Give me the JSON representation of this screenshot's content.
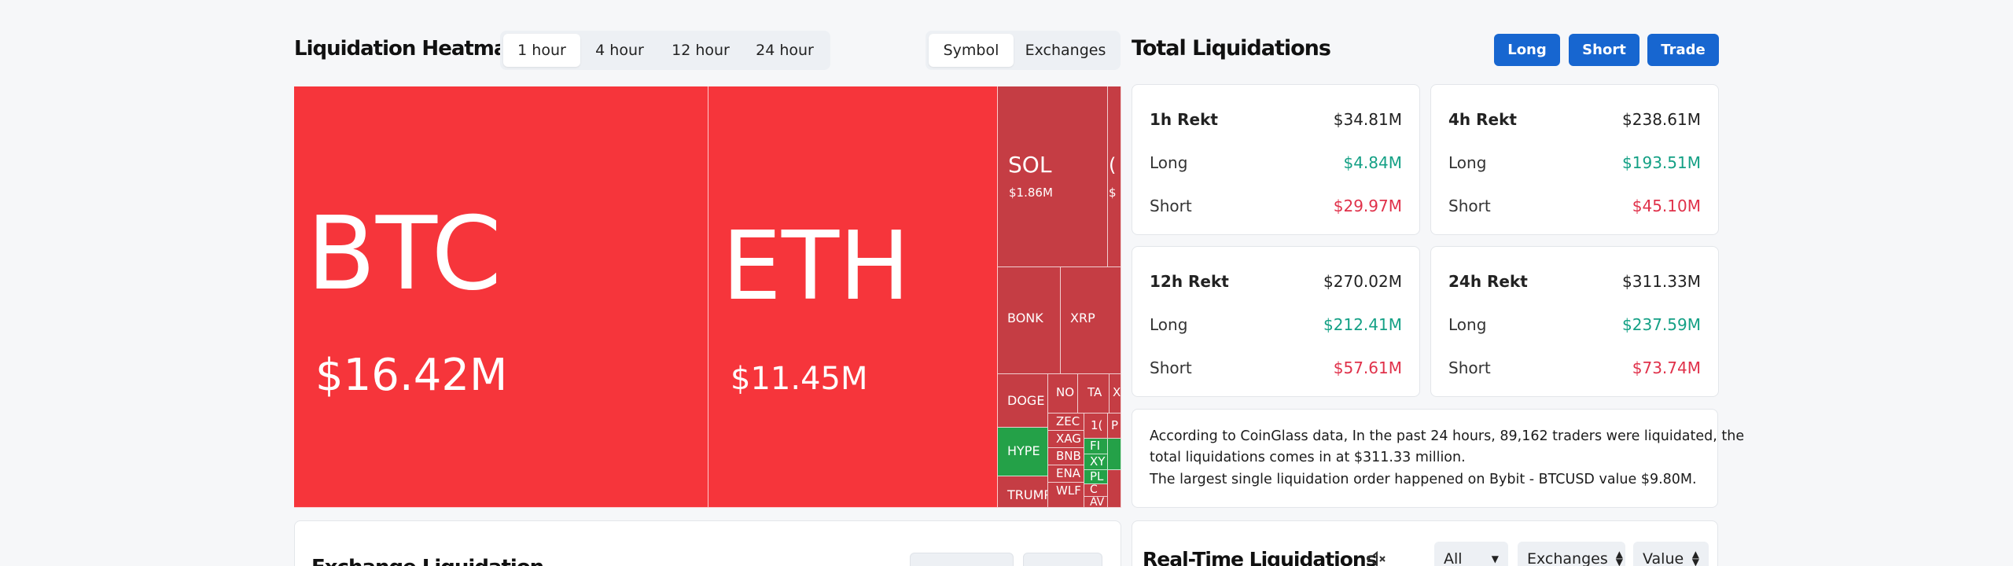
{
  "heatmap": {
    "title": "Liquidation Heatmap",
    "time_tabs": [
      "1 hour",
      "4 hour",
      "12 hour",
      "24 hour"
    ],
    "active_time_tab": "1 hour",
    "view_tabs": [
      "Symbol",
      "Exchanges"
    ],
    "active_view_tab": "Symbol",
    "cells": {
      "btc": {
        "symbol": "BTC",
        "value": "$16.42M"
      },
      "eth": {
        "symbol": "ETH",
        "value": "$11.45M"
      },
      "sol": {
        "symbol": "SOL",
        "value": "$1.86M"
      },
      "bonk": "BONK",
      "xrp": "XRP",
      "doge": "DOGE",
      "hype": "HYPE",
      "trump": "TRUMP",
      "no": "NO",
      "ta": "TA",
      "x": "X",
      "zec": "ZEC",
      "xag": "XAG",
      "bnb": "BNB",
      "ena": "ENA",
      "wlf": "WLF",
      "one": "1(",
      "fi": "FI",
      "xy": "XY",
      "pl": "PL",
      "c": "C",
      "av": "AV",
      "p": "P",
      "g": "(",
      "s": "$"
    },
    "colors": {
      "long_red": "#f6353b",
      "dark_red": "#c53d44",
      "green": "#24a148"
    }
  },
  "total": {
    "title": "Total Liquidations",
    "buttons": {
      "long": "Long",
      "short": "Short",
      "trade": "Trade"
    },
    "cards": [
      {
        "title": "1h Rekt",
        "total": "$34.81M",
        "long_label": "Long",
        "long": "$4.84M",
        "short_label": "Short",
        "short": "$29.97M"
      },
      {
        "title": "4h Rekt",
        "total": "$238.61M",
        "long_label": "Long",
        "long": "$193.51M",
        "short_label": "Short",
        "short": "$45.10M"
      },
      {
        "title": "12h Rekt",
        "total": "$270.02M",
        "long_label": "Long",
        "long": "$212.41M",
        "short_label": "Short",
        "short": "$57.61M"
      },
      {
        "title": "24h Rekt",
        "total": "$311.33M",
        "long_label": "Long",
        "long": "$237.59M",
        "short_label": "Short",
        "short": "$73.74M"
      }
    ],
    "summary": {
      "line1": "According to CoinGlass data, In the past 24 hours, 89,162 traders were liquidated, the",
      "line2": "total liquidations comes in at $311.33 million.",
      "line3": "The largest single liquidation order happened on Bybit - BTCUSD value $9.80M."
    }
  },
  "exchange_panel": {
    "title": "Exchange Liquidation"
  },
  "realtime": {
    "title": "Real-Time Liquidations",
    "mute_icon": "speaker-muted-icon",
    "filters": {
      "all": "All",
      "exchanges": "Exchanges",
      "value": "Value"
    }
  }
}
